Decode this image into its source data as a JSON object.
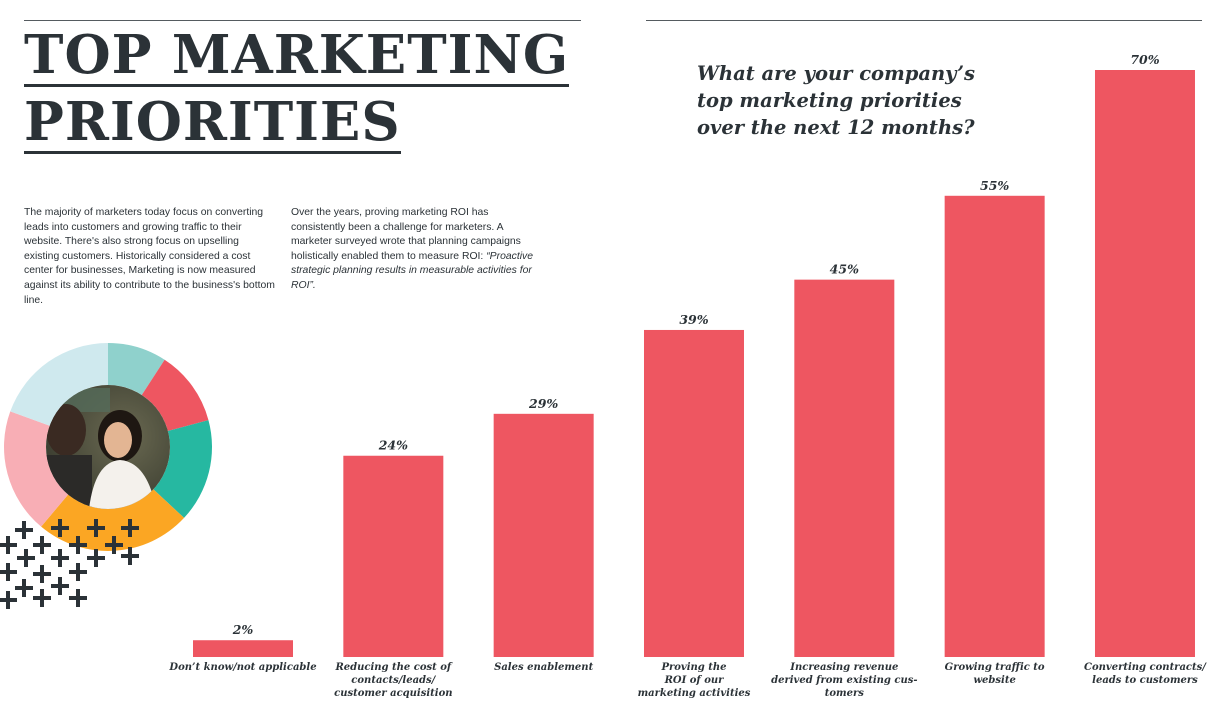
{
  "heading": {
    "title_line1": "TOP MARKETING",
    "title_line2": "PRIORITIES"
  },
  "intro": {
    "paragraph1": "The majority of marketers today focus on converting leads into customers and growing traffic to their website. There's also strong focus on upselling existing customers. Historically considered a cost center for businesses, Marketing is now measured against its ability to contribute to the business's bottom line.",
    "paragraph2_lead": "Over the years, proving marketing ROI has consistently been a challenge for marketers. A marketer surveyed wrote that planning campaigns holistically enabled them to measure ROI: ",
    "paragraph2_quote": "“Proactive strategic planning results in measurable activities for ROI”."
  },
  "colors": {
    "bar": "#ee5661",
    "text": "#2b3237",
    "donut": [
      "#8fd1cc",
      "#ee5661",
      "#26b8a1",
      "#fba623",
      "#f8aeb5",
      "#cfe9ee"
    ]
  },
  "decoration": {
    "photo_icon": "person-photo-icon",
    "pattern_icon": "plus-pattern-icon"
  },
  "chart_data": {
    "type": "bar",
    "title": "What are your company’s top marketing priorities over the next 12 months?",
    "title_lines": [
      "What are your company’s",
      "top marketing priorities",
      "over the next 12 months?"
    ],
    "categories": [
      "Don't know/not applicable",
      "Reducing the cost of contacts/leads/customer acquisition",
      "Sales enablement",
      "Proving the ROI of our marketing activities",
      "Increasing revenue derived from existing customers",
      "Growing traffic to website",
      "Converting contracts/leads to customers"
    ],
    "category_lines": [
      [
        "Don’t know/not applicable"
      ],
      [
        "Reducing the cost of",
        "contacts/leads/",
        "customer acquisition"
      ],
      [
        "Sales enablement"
      ],
      [
        "Proving the",
        "ROI of our",
        "marketing activities"
      ],
      [
        "Increasing revenue",
        "derived from existing cus-",
        "tomers"
      ],
      [
        "Growing traffic to",
        "website"
      ],
      [
        "Converting contracts/",
        "leads to customers"
      ]
    ],
    "values": [
      2,
      24,
      29,
      39,
      45,
      55,
      70
    ],
    "value_labels": [
      "2%",
      "24%",
      "29%",
      "39%",
      "45%",
      "55%",
      "70%"
    ],
    "unit": "%",
    "ylim": [
      0,
      70
    ],
    "grid": false,
    "legend": "none",
    "xlabel": "",
    "ylabel": ""
  }
}
